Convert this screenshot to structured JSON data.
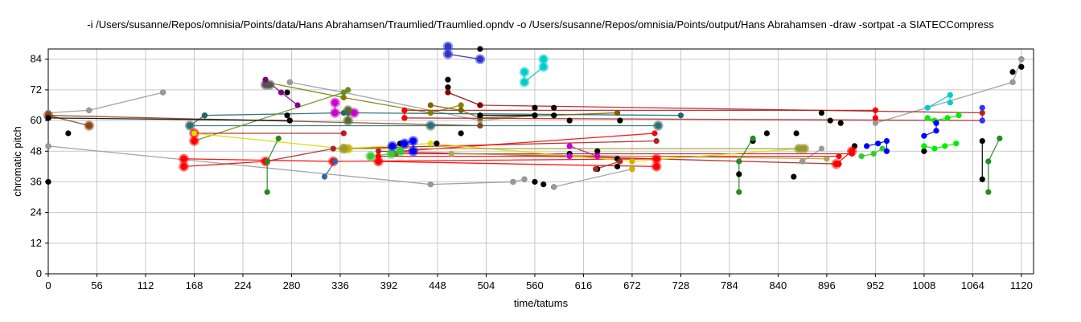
{
  "window": {
    "title": "-i /Users/susanne/Repos/omnisia/Points/data/Hans Abrahamsen/Traumlied/Traumlied.opndv -o /Users/susanne/Repos/omnisia/Points/output/Hans Abrahamsen -draw -sortpat -a SIATECCompress"
  },
  "chart_data": {
    "type": "scatter",
    "title": "-i /Users/susanne/Repos/omnisia/Points/data/Hans Abrahamsen/Traumlied/Traumlied.opndv -o /Users/susanne/Repos/omnisia/Points/output/Hans Abrahamsen -draw -sortpat -a SIATECCompress",
    "xlabel": "time/tatums",
    "ylabel": "chromatic pitch",
    "xlim": [
      0,
      1134
    ],
    "ylim": [
      0,
      88
    ],
    "xticks": [
      0,
      56,
      112,
      168,
      224,
      280,
      336,
      392,
      448,
      504,
      560,
      616,
      672,
      728,
      784,
      840,
      896,
      952,
      1008,
      1064,
      1120
    ],
    "yticks": [
      0,
      12,
      24,
      36,
      48,
      60,
      72,
      84
    ],
    "grid": true,
    "legend": "none",
    "background_points": [
      [
        0,
        61
      ],
      [
        0,
        63
      ],
      [
        0,
        36
      ],
      [
        0,
        50
      ],
      [
        23,
        55
      ],
      [
        47,
        58
      ],
      [
        47,
        64
      ],
      [
        132,
        71
      ],
      [
        180,
        62
      ],
      [
        275,
        62
      ],
      [
        278,
        60
      ],
      [
        278,
        75
      ],
      [
        275,
        71
      ],
      [
        340,
        55
      ],
      [
        405,
        51
      ],
      [
        440,
        35
      ],
      [
        447,
        51
      ],
      [
        460,
        76
      ],
      [
        460,
        73
      ],
      [
        475,
        55
      ],
      [
        497,
        58
      ],
      [
        497,
        61
      ],
      [
        497,
        66
      ],
      [
        497,
        88
      ],
      [
        535,
        36
      ],
      [
        548,
        37
      ],
      [
        560,
        36
      ],
      [
        570,
        35
      ],
      [
        582,
        34
      ],
      [
        560,
        62
      ],
      [
        560,
        65
      ],
      [
        582,
        62
      ],
      [
        582,
        65
      ],
      [
        600,
        47
      ],
      [
        632,
        48
      ],
      [
        632,
        41
      ],
      [
        600,
        60
      ],
      [
        655,
        45
      ],
      [
        655,
        42
      ],
      [
        655,
        63
      ],
      [
        658,
        60
      ],
      [
        672,
        41
      ],
      [
        795,
        39
      ],
      [
        811,
        52
      ],
      [
        827,
        55
      ],
      [
        858,
        38
      ],
      [
        861,
        55
      ],
      [
        868,
        44
      ],
      [
        890,
        63
      ],
      [
        900,
        60
      ],
      [
        912,
        59
      ],
      [
        928,
        50
      ],
      [
        1008,
        48
      ],
      [
        1075,
        52
      ],
      [
        1075,
        37
      ],
      [
        1110,
        75
      ],
      [
        1110,
        79
      ],
      [
        1120,
        84
      ],
      [
        1120,
        81
      ]
    ],
    "series": [
      {
        "color": "#999999",
        "points": [
          [
            0,
            63
          ],
          [
            47,
            64
          ],
          [
            132,
            71
          ]
        ],
        "size": "small"
      },
      {
        "color": "#999999",
        "points": [
          [
            0,
            50
          ],
          [
            440,
            35
          ],
          [
            535,
            36
          ],
          [
            548,
            37
          ]
        ],
        "size": "small"
      },
      {
        "color": "#999999",
        "points": [
          [
            278,
            75
          ],
          [
            340,
            71
          ],
          [
            497,
            60
          ],
          [
            560,
            62
          ]
        ],
        "size": "small"
      },
      {
        "color": "#999999",
        "points": [
          [
            582,
            34
          ],
          [
            672,
            41
          ]
        ],
        "size": "small"
      },
      {
        "color": "#999999",
        "points": [
          [
            952,
            59
          ],
          [
            1110,
            75
          ],
          [
            1120,
            84
          ]
        ],
        "size": "small"
      },
      {
        "color": "#999999",
        "points": [
          [
            868,
            44
          ],
          [
            890,
            49
          ]
        ],
        "size": "small"
      },
      {
        "color": "#8b4513",
        "points": [
          [
            0,
            62
          ],
          [
            47,
            58
          ]
        ],
        "size": "large"
      },
      {
        "color": "#8b4513",
        "points": [
          [
            0,
            62
          ],
          [
            497,
            58
          ]
        ],
        "size": "small"
      },
      {
        "color": "#1e6a6a",
        "points": [
          [
            163,
            58
          ],
          [
            180,
            62
          ],
          [
            340,
            63
          ],
          [
            345,
            63
          ],
          [
            728,
            62
          ]
        ],
        "size": "small"
      },
      {
        "color": "#2f6f6f",
        "points": [
          [
            163,
            58
          ],
          [
            440,
            58
          ],
          [
            702,
            58
          ]
        ],
        "size": "large"
      },
      {
        "color": "#808000",
        "points": [
          [
            250,
            75
          ],
          [
            340,
            69
          ],
          [
            440,
            63
          ],
          [
            475,
            66
          ]
        ],
        "size": "small"
      },
      {
        "color": "#6b8e23",
        "points": [
          [
            168,
            52
          ],
          [
            340,
            71
          ],
          [
            345,
            72
          ]
        ],
        "size": "small"
      },
      {
        "color": "#555555",
        "points": [
          [
            250,
            74
          ],
          [
            255,
            74
          ]
        ],
        "size": "large"
      },
      {
        "color": "#800080",
        "points": [
          [
            250,
            76
          ],
          [
            268,
            71
          ],
          [
            287,
            66
          ]
        ],
        "size": "small"
      },
      {
        "color": "#cc00cc",
        "points": [
          [
            330,
            67
          ],
          [
            330,
            63
          ],
          [
            352,
            63
          ]
        ],
        "size": "large"
      },
      {
        "color": "#cc00cc",
        "points": [
          [
            600,
            50
          ],
          [
            632,
            46
          ],
          [
            600,
            46
          ]
        ],
        "size": "small"
      },
      {
        "color": "#b22222",
        "points": [
          [
            168,
            55
          ],
          [
            340,
            55
          ]
        ],
        "size": "small"
      },
      {
        "color": "#b22222",
        "points": [
          [
            250,
            44
          ],
          [
            328,
            49
          ],
          [
            700,
            52
          ]
        ],
        "size": "small"
      },
      {
        "color": "#b22222",
        "points": [
          [
            410,
            64
          ],
          [
            952,
            64
          ]
        ],
        "size": "small"
      },
      {
        "color": "#b22222",
        "points": [
          [
            497,
            66
          ],
          [
            1075,
            63
          ]
        ],
        "size": "small"
      },
      {
        "color": "#b22222",
        "points": [
          [
            410,
            61
          ],
          [
            1075,
            60
          ]
        ],
        "size": "small"
      },
      {
        "color": "#b22222",
        "points": [
          [
            380,
            48
          ],
          [
            910,
            43
          ]
        ],
        "size": "small"
      },
      {
        "color": "#b22222",
        "points": [
          [
            400,
            47
          ],
          [
            925,
            47
          ]
        ],
        "size": "small"
      },
      {
        "color": "#ff0000",
        "points": [
          [
            156,
            45
          ],
          [
            328,
            44
          ],
          [
            700,
            45
          ]
        ],
        "size": "large"
      },
      {
        "color": "#ff0000",
        "points": [
          [
            156,
            42
          ],
          [
            250,
            44
          ]
        ],
        "size": "large"
      },
      {
        "color": "#ff0000",
        "points": [
          [
            168,
            52
          ],
          [
            168,
            55
          ]
        ],
        "size": "large"
      },
      {
        "color": "#ff0000",
        "points": [
          [
            380,
            44
          ],
          [
            700,
            42
          ]
        ],
        "size": "large"
      },
      {
        "color": "#ff0000",
        "points": [
          [
            380,
            46
          ],
          [
            910,
            46
          ]
        ],
        "size": "small"
      },
      {
        "color": "#ff0000",
        "points": [
          [
            405,
            48
          ],
          [
            698,
            55
          ]
        ],
        "size": "small"
      },
      {
        "color": "#ff0000",
        "points": [
          [
            410,
            64
          ],
          [
            410,
            61
          ]
        ],
        "size": "small"
      },
      {
        "color": "#ff0000",
        "points": [
          [
            952,
            64
          ],
          [
            952,
            61
          ]
        ],
        "size": "small"
      },
      {
        "color": "#ff0000",
        "points": [
          [
            907,
            43
          ],
          [
            925,
            48
          ]
        ],
        "size": "large"
      },
      {
        "color": "#dddd00",
        "points": [
          [
            168,
            55
          ],
          [
            340,
            49
          ],
          [
            440,
            51
          ],
          [
            672,
            44
          ],
          [
            864,
            49
          ]
        ],
        "size": "small"
      },
      {
        "color": "#c8b400",
        "points": [
          [
            340,
            49
          ],
          [
            345,
            49
          ]
        ],
        "size": "large"
      },
      {
        "color": "#c8b400",
        "points": [
          [
            672,
            44
          ],
          [
            672,
            41
          ]
        ],
        "size": "small"
      },
      {
        "color": "#999933",
        "points": [
          [
            340,
            49
          ],
          [
            864,
            49
          ],
          [
            870,
            49
          ]
        ],
        "size": "large"
      },
      {
        "color": "#228b22",
        "points": [
          [
            252,
            32
          ],
          [
            252,
            44
          ],
          [
            265,
            53
          ]
        ],
        "size": "small"
      },
      {
        "color": "#228b22",
        "points": [
          [
            795,
            32
          ],
          [
            795,
            44
          ],
          [
            811,
            53
          ]
        ],
        "size": "small"
      },
      {
        "color": "#228b22",
        "points": [
          [
            1082,
            32
          ],
          [
            1082,
            44
          ],
          [
            1095,
            53
          ]
        ],
        "size": "small"
      },
      {
        "color": "#33cc33",
        "points": [
          [
            371,
            46
          ],
          [
            395,
            47
          ],
          [
            405,
            48
          ]
        ],
        "size": "large"
      },
      {
        "color": "#33cc33",
        "points": [
          [
            936,
            46
          ],
          [
            950,
            47
          ],
          [
            960,
            49
          ]
        ],
        "size": "small"
      },
      {
        "color": "#00ee00",
        "points": [
          [
            1008,
            50
          ],
          [
            1020,
            49
          ],
          [
            1032,
            50
          ],
          [
            1045,
            51
          ]
        ],
        "size": "small"
      },
      {
        "color": "#00ee00",
        "points": [
          [
            1012,
            61
          ],
          [
            1020,
            60
          ],
          [
            1035,
            61
          ],
          [
            1048,
            62
          ]
        ],
        "size": "small"
      },
      {
        "color": "#0000ff",
        "points": [
          [
            396,
            50
          ],
          [
            410,
            51
          ],
          [
            420,
            52
          ],
          [
            420,
            48
          ]
        ],
        "size": "large"
      },
      {
        "color": "#0000ff",
        "points": [
          [
            942,
            50
          ],
          [
            955,
            51
          ],
          [
            965,
            52
          ],
          [
            965,
            48
          ]
        ],
        "size": "small"
      },
      {
        "color": "#0000ff",
        "points": [
          [
            1008,
            54
          ],
          [
            1022,
            56
          ],
          [
            1022,
            59
          ]
        ],
        "size": "small"
      },
      {
        "color": "#3333cc",
        "points": [
          [
            460,
            89
          ],
          [
            460,
            86
          ],
          [
            497,
            84
          ]
        ],
        "size": "large"
      },
      {
        "color": "#00cccc",
        "points": [
          [
            548,
            79
          ],
          [
            548,
            75
          ],
          [
            570,
            81
          ],
          [
            570,
            84
          ]
        ],
        "size": "large"
      },
      {
        "color": "#00cccc",
        "points": [
          [
            1012,
            65
          ],
          [
            1038,
            70
          ],
          [
            1038,
            67
          ]
        ],
        "size": "small"
      },
      {
        "color": "#3366aa",
        "points": [
          [
            318,
            38
          ],
          [
            330,
            44
          ]
        ],
        "size": "small"
      },
      {
        "color": "#3333ff",
        "points": [
          [
            1075,
            65
          ],
          [
            1075,
            60
          ]
        ],
        "size": "small"
      },
      {
        "color": "#7f6000",
        "points": [
          [
            440,
            66
          ],
          [
            475,
            64
          ],
          [
            497,
            61
          ],
          [
            655,
            63
          ]
        ],
        "size": "small"
      },
      {
        "color": "#556b2f",
        "points": [
          [
            345,
            64
          ],
          [
            345,
            60
          ]
        ],
        "size": "large"
      },
      {
        "color": "#8b0000",
        "points": [
          [
            460,
            71
          ],
          [
            497,
            66
          ]
        ],
        "size": "small"
      },
      {
        "color": "#a52a2a",
        "points": [
          [
            630,
            41
          ],
          [
            658,
            44
          ]
        ],
        "size": "small"
      },
      {
        "color": "#aaaa55",
        "points": [
          [
            464,
            47
          ],
          [
            896,
            45
          ]
        ],
        "size": "small"
      },
      {
        "color": "#000000",
        "points": [
          [
            497,
            62
          ],
          [
            560,
            62
          ]
        ],
        "size": "small"
      },
      {
        "color": "#000000",
        "points": [
          [
            0,
            61
          ],
          [
            278,
            60
          ]
        ],
        "size": "small"
      },
      {
        "color": "#000000",
        "points": [
          [
            1075,
            37
          ],
          [
            1075,
            52
          ]
        ],
        "size": "none"
      }
    ]
  }
}
